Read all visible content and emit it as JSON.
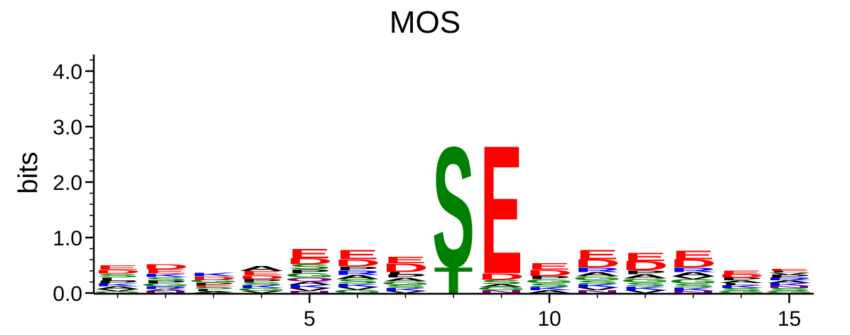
{
  "chart_data": {
    "type": "sequence-logo",
    "title": "MOS",
    "ylabel": "bits",
    "xlabel": "",
    "ylim": [
      0,
      4.3
    ],
    "y_ticks": [
      "0.0",
      "1.0",
      "2.0",
      "3.0",
      "4.0"
    ],
    "y_tick_values": [
      0,
      1,
      2,
      3,
      4
    ],
    "x_ticks": [
      "5",
      "10",
      "15"
    ],
    "x_tick_values": [
      5,
      10,
      15
    ],
    "positions": [
      1,
      2,
      3,
      4,
      5,
      6,
      7,
      8,
      9,
      10,
      11,
      12,
      13,
      14,
      15
    ],
    "colors": {
      "E": "#ff0000",
      "D": "#ff0000",
      "S": "#008000",
      "T": "#008000",
      "G": "#008000",
      "Y": "#008000",
      "C": "#008000",
      "N": "#800080",
      "Q": "#800080",
      "K": "#0000ff",
      "R": "#0000ff",
      "H": "#0000ff",
      "A": "#000000",
      "V": "#000000",
      "L": "#000000",
      "I": "#000000",
      "P": "#000000",
      "F": "#000000",
      "M": "#000000",
      "W": "#000000"
    },
    "stacks": [
      [
        [
          "G",
          0.03
        ],
        [
          "V",
          0.04
        ],
        [
          "A",
          0.05
        ],
        [
          "K",
          0.05
        ],
        [
          "P",
          0.05
        ],
        [
          "L",
          0.06
        ],
        [
          "S",
          0.07
        ],
        [
          "D",
          0.07
        ],
        [
          "E",
          0.08
        ]
      ],
      [
        [
          "N",
          0.03
        ],
        [
          "A",
          0.04
        ],
        [
          "R",
          0.05
        ],
        [
          "G",
          0.05
        ],
        [
          "P",
          0.05
        ],
        [
          "S",
          0.07
        ],
        [
          "K",
          0.06
        ],
        [
          "E",
          0.08
        ],
        [
          "D",
          0.09
        ]
      ],
      [
        [
          "A",
          0.03
        ],
        [
          "L",
          0.04
        ],
        [
          "S",
          0.04
        ],
        [
          "E",
          0.04
        ],
        [
          "P",
          0.04
        ],
        [
          "G",
          0.05
        ],
        [
          "D",
          0.06
        ],
        [
          "K",
          0.07
        ]
      ],
      [
        [
          "V",
          0.04
        ],
        [
          "G",
          0.05
        ],
        [
          "K",
          0.05
        ],
        [
          "S",
          0.06
        ],
        [
          "P",
          0.05
        ],
        [
          "D",
          0.07
        ],
        [
          "E",
          0.08
        ],
        [
          "A",
          0.09
        ]
      ],
      [
        [
          "N",
          0.04
        ],
        [
          "V",
          0.05
        ],
        [
          "K",
          0.06
        ],
        [
          "A",
          0.06
        ],
        [
          "Q",
          0.07
        ],
        [
          "G",
          0.08
        ],
        [
          "P",
          0.07
        ],
        [
          "S",
          0.09
        ],
        [
          "D",
          0.11
        ],
        [
          "E",
          0.17
        ]
      ],
      [
        [
          "G",
          0.06
        ],
        [
          "V",
          0.05
        ],
        [
          "K",
          0.06
        ],
        [
          "S",
          0.08
        ],
        [
          "A",
          0.08
        ],
        [
          "R",
          0.08
        ],
        [
          "P",
          0.07
        ],
        [
          "D",
          0.13
        ],
        [
          "E",
          0.17
        ]
      ],
      [
        [
          "V",
          0.04
        ],
        [
          "K",
          0.05
        ],
        [
          "S",
          0.06
        ],
        [
          "G",
          0.06
        ],
        [
          "A",
          0.07
        ],
        [
          "P",
          0.06
        ],
        [
          "L",
          0.04
        ],
        [
          "D",
          0.16
        ],
        [
          "E",
          0.12
        ]
      ],
      [
        [
          "T",
          0.48
        ],
        [
          "S",
          2.23
        ]
      ],
      [
        [
          "N",
          0.05
        ],
        [
          "G",
          0.06
        ],
        [
          "A",
          0.05
        ],
        [
          "S",
          0.08
        ],
        [
          "D",
          0.12
        ],
        [
          "E",
          2.38
        ]
      ],
      [
        [
          "A",
          0.05
        ],
        [
          "K",
          0.06
        ],
        [
          "S",
          0.07
        ],
        [
          "G",
          0.07
        ],
        [
          "P",
          0.06
        ],
        [
          "D",
          0.11
        ],
        [
          "E",
          0.12
        ]
      ],
      [
        [
          "N",
          0.05
        ],
        [
          "V",
          0.05
        ],
        [
          "K",
          0.06
        ],
        [
          "S",
          0.07
        ],
        [
          "G",
          0.07
        ],
        [
          "A",
          0.08
        ],
        [
          "R",
          0.08
        ],
        [
          "D",
          0.15
        ],
        [
          "E",
          0.17
        ]
      ],
      [
        [
          "V",
          0.05
        ],
        [
          "K",
          0.07
        ],
        [
          "S",
          0.07
        ],
        [
          "G",
          0.07
        ],
        [
          "A",
          0.08
        ],
        [
          "P",
          0.07
        ],
        [
          "D",
          0.17
        ],
        [
          "E",
          0.15
        ]
      ],
      [
        [
          "N",
          0.04
        ],
        [
          "K",
          0.06
        ],
        [
          "S",
          0.07
        ],
        [
          "G",
          0.08
        ],
        [
          "V",
          0.05
        ],
        [
          "A",
          0.08
        ],
        [
          "R",
          0.08
        ],
        [
          "D",
          0.15
        ],
        [
          "E",
          0.16
        ]
      ],
      [
        [
          "G",
          0.04
        ],
        [
          "S",
          0.05
        ],
        [
          "K",
          0.05
        ],
        [
          "L",
          0.04
        ],
        [
          "A",
          0.05
        ],
        [
          "P",
          0.05
        ],
        [
          "D",
          0.06
        ],
        [
          "E",
          0.07
        ]
      ],
      [
        [
          "G",
          0.04
        ],
        [
          "S",
          0.05
        ],
        [
          "N",
          0.04
        ],
        [
          "K",
          0.05
        ],
        [
          "A",
          0.05
        ],
        [
          "R",
          0.05
        ],
        [
          "P",
          0.05
        ],
        [
          "V",
          0.04
        ],
        [
          "L",
          0.03
        ],
        [
          "E",
          0.04
        ]
      ]
    ]
  }
}
